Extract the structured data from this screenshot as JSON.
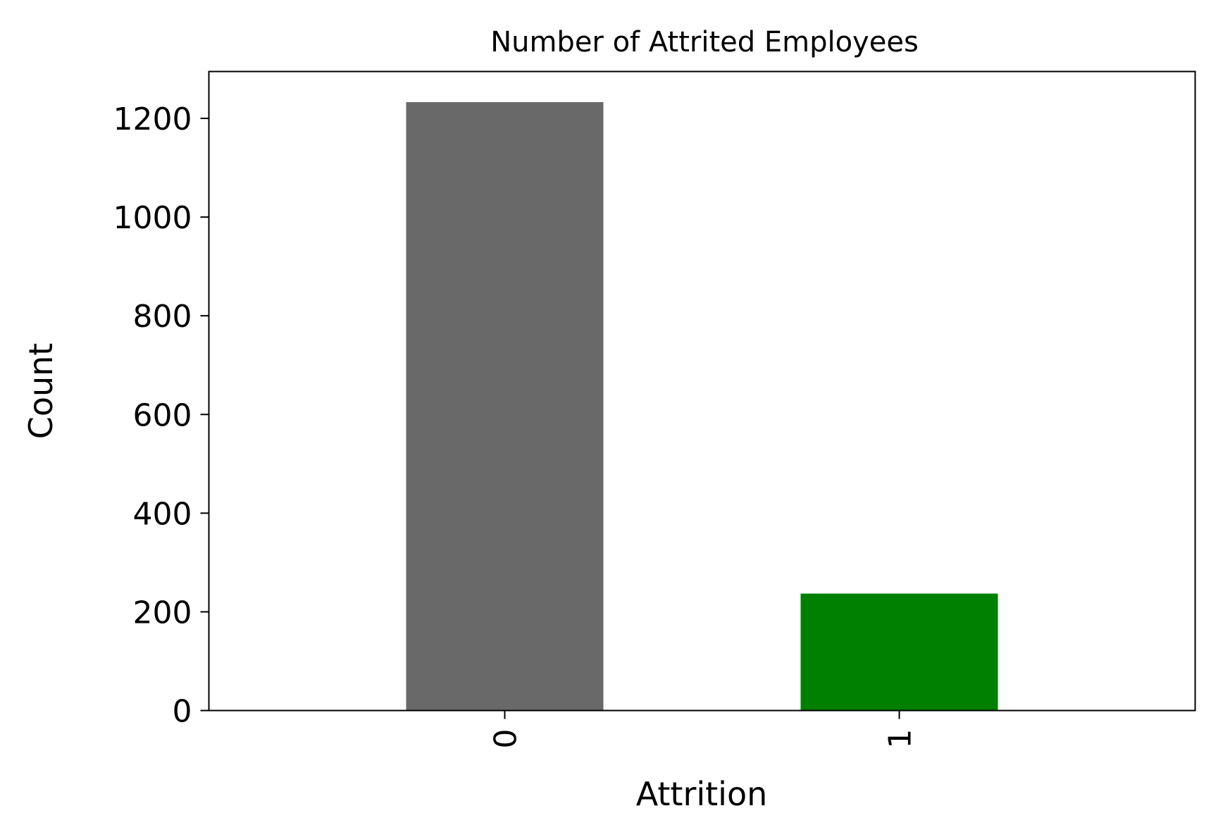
{
  "chart_data": {
    "type": "bar",
    "title": "Number of Attrited Employees",
    "xlabel": "Attrition",
    "ylabel": "Count",
    "categories": [
      "0",
      "1"
    ],
    "values": [
      1233,
      237
    ],
    "bar_colors": [
      "#696969",
      "#008000"
    ],
    "ylim": [
      0,
      1295
    ],
    "yticks": [
      0,
      200,
      400,
      600,
      800,
      1000,
      1200
    ],
    "ytick_labels": [
      "0",
      "200",
      "400",
      "600",
      "800",
      "1000",
      "1200"
    ],
    "xtick_rotation": "vertical",
    "grid": false,
    "legend": "none"
  }
}
